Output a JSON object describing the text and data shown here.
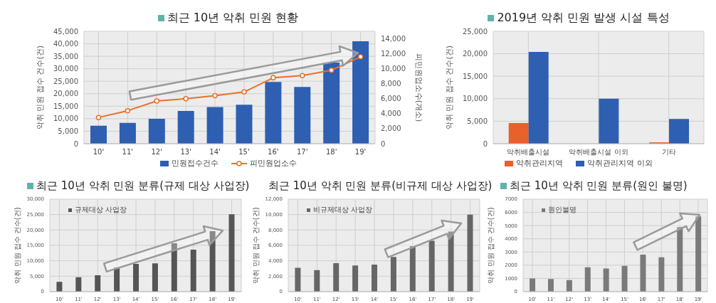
{
  "chart_data": [
    {
      "type": "bar",
      "title": "최근 10년 악취 민원 현황",
      "ylabel": "악취 민원 접수 건수(건)",
      "y2label": "피민원업소수(개소)",
      "categories": [
        "10'",
        "11'",
        "12'",
        "13'",
        "14'",
        "15'",
        "16'",
        "17'",
        "18'",
        "19'"
      ],
      "series": [
        {
          "name": "민원접수건수",
          "color": "#2e5fb0",
          "values": [
            7200,
            8300,
            10000,
            13100,
            14700,
            15600,
            24700,
            22700,
            32500,
            41000
          ]
        },
        {
          "name": "피민원업소수",
          "type": "line",
          "axis": "y2",
          "color": "#e8702c",
          "values": [
            3500,
            4400,
            5700,
            6000,
            6400,
            6900,
            8800,
            9100,
            9800,
            11600
          ]
        }
      ],
      "ylim": [
        0,
        45000
      ],
      "yticks": [
        0,
        {
          "value": 5000,
          "label": "5,000"
        },
        {
          "value": 10000,
          "label": "10,000"
        },
        {
          "value": 15000,
          "label": "15,000"
        },
        {
          "value": 20000,
          "label": "20,000"
        },
        {
          "value": 25000,
          "label": "25,000"
        },
        {
          "value": 30000,
          "label": "30,000"
        },
        {
          "value": 35000,
          "label": "35,000"
        },
        {
          "value": 40000,
          "label": "40,000"
        },
        {
          "value": 45000,
          "label": "45,000"
        }
      ],
      "y2lim": [
        0,
        15000
      ],
      "y2ticks": [
        0,
        {
          "value": 2000,
          "label": "2,000"
        },
        {
          "value": 4000,
          "label": "4,000"
        },
        {
          "value": 6000,
          "label": "6,000"
        },
        {
          "value": 8000,
          "label": "8,000"
        },
        {
          "value": 10000,
          "label": "10,000"
        },
        {
          "value": 12000,
          "label": "12,000"
        },
        {
          "value": 14000,
          "label": "14,000"
        }
      ],
      "grid": true,
      "legend": "bottom",
      "marker": "circle"
    },
    {
      "type": "bar",
      "title": "2019년 악취 민원 발생 시설 특성",
      "ylabel": "악취 민원 접수 건수(건)",
      "categories": [
        "악취배출시설",
        "악취배출시설 이외",
        "기타"
      ],
      "series": [
        {
          "name": "악취관리지역",
          "color": "#e8602c",
          "values": [
            4600,
            null,
            300
          ]
        },
        {
          "name": "악취관리지역 이외",
          "color": "#2e5fb0",
          "values": [
            20400,
            10000,
            5500
          ]
        }
      ],
      "ylim": [
        0,
        25000
      ],
      "yticks": [
        0,
        {
          "value": 5000,
          "label": "5,000"
        },
        {
          "value": 10000,
          "label": "10,000"
        },
        {
          "value": 15000,
          "label": "15,000"
        },
        {
          "value": 20000,
          "label": "20,000"
        },
        {
          "value": 25000,
          "label": "25,000"
        }
      ],
      "grid": true,
      "legend": "bottom"
    },
    {
      "type": "bar",
      "title": "최근 10년 악취 민원 분류(규제 대상 사업장)",
      "ylabel": "악취 민원 접수 건수(건)",
      "categories": [
        "10'",
        "11'",
        "12'",
        "13'",
        "14'",
        "15'",
        "16'",
        "17'",
        "18'",
        "19'"
      ],
      "series": [
        {
          "name": "규제대상 사업장",
          "color": "#555555",
          "values": [
            3200,
            4700,
            5300,
            7800,
            9000,
            9200,
            15700,
            13600,
            19600,
            25100
          ]
        }
      ],
      "ylim": [
        0,
        30000
      ],
      "yticks": [
        0,
        {
          "value": 5000,
          "label": "5,000"
        },
        {
          "value": 10000,
          "label": "10,000"
        },
        {
          "value": 15000,
          "label": "15,000"
        },
        {
          "value": 20000,
          "label": "20,000"
        },
        {
          "value": 25000,
          "label": "25,000"
        },
        {
          "value": 30000,
          "label": "30,000"
        }
      ],
      "grid": true,
      "legend": "top left"
    },
    {
      "type": "bar",
      "title": "최근 10년 악취 민원 분류(비규제 대상 사업장)",
      "ylabel": "악취 민원 접수 건수(건)",
      "categories": [
        "10'",
        "11'",
        "12'",
        "13'",
        "14'",
        "15'",
        "16'",
        "17'",
        "18'",
        "19'"
      ],
      "series": [
        {
          "name": "비규제대상 사업장",
          "color": "#666666",
          "values": [
            3100,
            2800,
            3700,
            3400,
            3500,
            4500,
            5900,
            6600,
            7800,
            10000
          ]
        }
      ],
      "ylim": [
        0,
        12000
      ],
      "yticks": [
        0,
        {
          "value": 2000,
          "label": "2,000"
        },
        {
          "value": 4000,
          "label": "4,000"
        },
        {
          "value": 6000,
          "label": "6,000"
        },
        {
          "value": 8000,
          "label": "8,000"
        },
        {
          "value": 10000,
          "label": "10,000"
        },
        {
          "value": 12000,
          "label": "12,000"
        }
      ],
      "grid": true,
      "legend": "top left"
    },
    {
      "type": "bar",
      "title": "최근 10년 악취 민원 분류(원인 불명)",
      "ylabel": "악취 민원 접수 건수(건)",
      "categories": [
        "10'",
        "11'",
        "12'",
        "13'",
        "14'",
        "15'",
        "16'",
        "17'",
        "18'",
        "19'"
      ],
      "series": [
        {
          "name": "원인불명",
          "color": "#7a7a7a",
          "values": [
            1000,
            950,
            870,
            1850,
            1750,
            1950,
            2800,
            2600,
            4900,
            5700
          ]
        }
      ],
      "ylim": [
        0,
        7000
      ],
      "yticks": [
        0,
        1000,
        2000,
        3000,
        4000,
        5000,
        6000,
        7000
      ],
      "grid": true,
      "legend": "top left"
    }
  ]
}
